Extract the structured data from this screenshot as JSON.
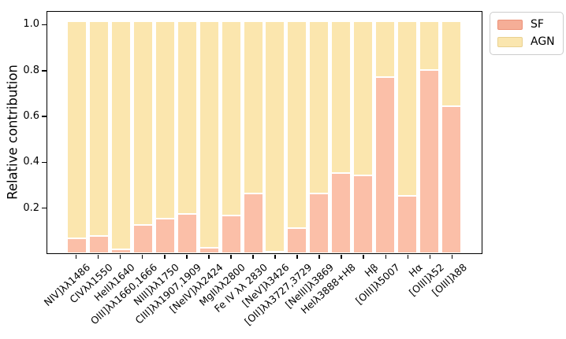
{
  "figure": {
    "ylabel": "Relative contribution"
  },
  "legend": {
    "entries": [
      {
        "label": "SF",
        "fill": "#f5ae97",
        "edge": "#ed9379"
      },
      {
        "label": "AGN",
        "fill": "#fae6af",
        "edge": "#e9d191"
      }
    ]
  },
  "chart_data": {
    "type": "bar",
    "stacked": true,
    "title": "",
    "xlabel": "",
    "ylabel": "Relative contribution",
    "ylim": [
      0,
      1.06
    ],
    "yticks": [
      0.2,
      0.4,
      0.6,
      0.8,
      1.0
    ],
    "ytick_labels": [
      "0.2",
      "0.4",
      "0.6",
      "0.8",
      "1.0"
    ],
    "grid": false,
    "legend_position": "upper-right-outside",
    "bar_edge_color": "#ffffff",
    "stack_top_visual": 1.02,
    "categories": [
      "NIV]λλ1486",
      "CIVλλ1550",
      "HeIIλ1640",
      "OIII]λλ1660,1666",
      "NIII]λλ1750",
      "CIII]λλ1907,1909",
      "[NeIV]λλ2424",
      "MgIIλλ2800",
      "Fe IV λλ 2830",
      "[NeV]λ3426",
      "[OII]λλ3727,3729",
      "[NeIII]λ3869",
      "HeIλ3888+H8",
      "Hβ",
      "[OIII]λ5007",
      "Hα",
      "[OIII]λ52",
      "[OIII]λ88"
    ],
    "series": [
      {
        "name": "SF",
        "color": "#fbbfa8",
        "values": [
          0.065,
          0.075,
          0.018,
          0.125,
          0.15,
          0.17,
          0.025,
          0.165,
          0.26,
          0.008,
          0.11,
          0.26,
          0.35,
          0.34,
          0.77,
          0.25,
          0.8,
          0.64
        ]
      },
      {
        "name": "AGN",
        "color": "#fbe6ae",
        "values": [
          0.935,
          0.925,
          0.982,
          0.875,
          0.85,
          0.83,
          0.975,
          0.835,
          0.74,
          0.992,
          0.89,
          0.74,
          0.65,
          0.66,
          0.23,
          0.75,
          0.2,
          0.36
        ]
      }
    ]
  }
}
